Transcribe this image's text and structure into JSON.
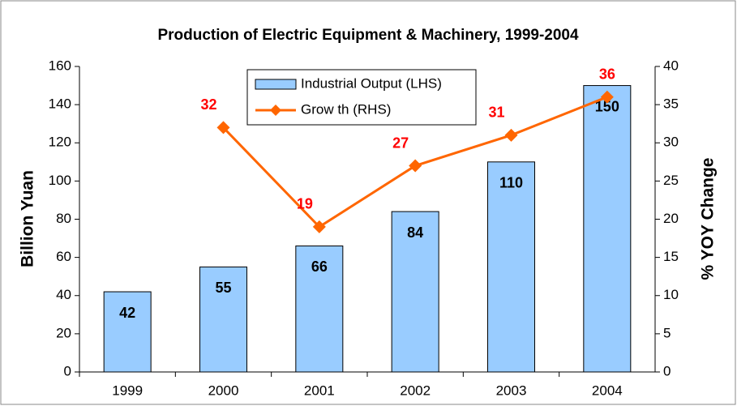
{
  "chart_data": {
    "type": "bar",
    "title": "Production of Electric Equipment & Machinery, 1999-2004",
    "y_label": "Billion Yuan",
    "y2_label": "% YOY Change",
    "categories": [
      "1999",
      "2000",
      "2001",
      "2002",
      "2003",
      "2004"
    ],
    "series": [
      {
        "name": "Industrial Output (LHS)",
        "type": "bar",
        "color": "#99ccff",
        "values": [
          42,
          55,
          66,
          84,
          110,
          150
        ]
      },
      {
        "name": "Grow th (RHS)",
        "type": "line",
        "axis": "y2",
        "color": "#ff6600",
        "label_color": "#ff0000",
        "values": [
          null,
          32,
          19,
          27,
          31,
          36
        ]
      }
    ],
    "ylim": [
      0,
      160
    ],
    "yticks": [
      0,
      20,
      40,
      60,
      80,
      100,
      120,
      140,
      160
    ],
    "y2lim": [
      0,
      40
    ],
    "y2ticks": [
      0,
      5,
      10,
      15,
      20,
      25,
      30,
      35,
      40
    ],
    "grid": false,
    "legend": "top"
  }
}
